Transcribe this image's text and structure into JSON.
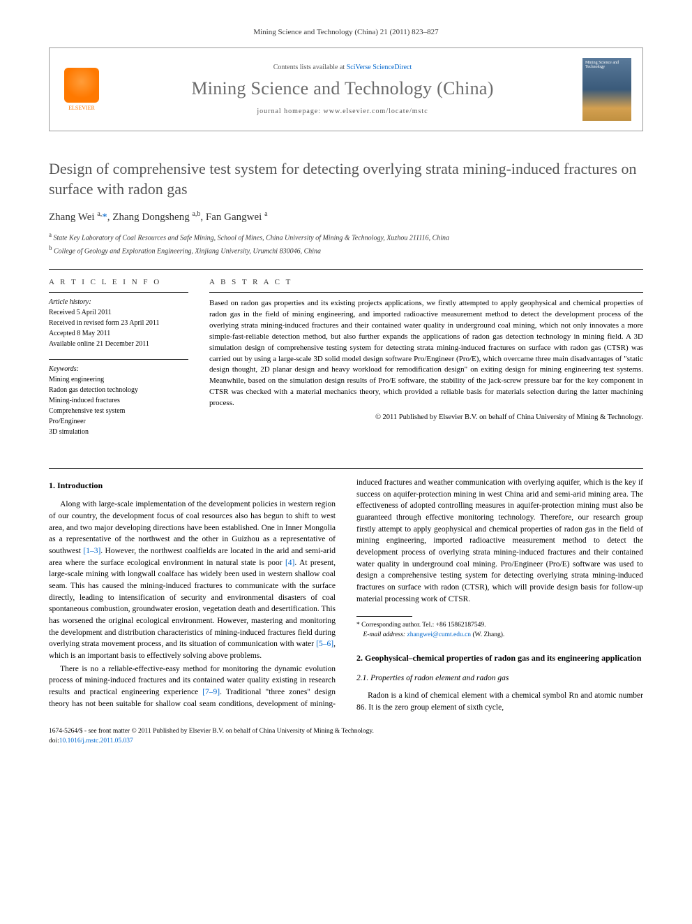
{
  "citation": "Mining Science and Technology (China) 21 (2011) 823–827",
  "header": {
    "contents_line_prefix": "Contents lists available at ",
    "contents_link": "SciVerse ScienceDirect",
    "journal_name": "Mining Science and Technology (China)",
    "homepage_prefix": "journal homepage: ",
    "homepage_url": "www.elsevier.com/locate/mstc",
    "elsevier_label": "ELSEVIER",
    "cover_text": "Mining Science and Technology"
  },
  "title": "Design of comprehensive test system for detecting overlying strata mining-induced fractures on surface with radon gas",
  "authors_html": "Zhang Wei <sup>a,</sup><a href='#'>*</a>, Zhang Dongsheng <sup>a,b</sup>, Fan Gangwei <sup>a</sup>",
  "affiliations": [
    {
      "sup": "a",
      "text": "State Key Laboratory of Coal Resources and Safe Mining, School of Mines, China University of Mining & Technology, Xuzhou 211116, China"
    },
    {
      "sup": "b",
      "text": "College of Geology and Exploration Engineering, Xinjiang University, Urumchi 830046, China"
    }
  ],
  "article_info": {
    "heading": "A R T I C L E   I N F O",
    "history_label": "Article history:",
    "history": [
      "Received 5 April 2011",
      "Received in revised form 23 April 2011",
      "Accepted 8 May 2011",
      "Available online 21 December 2011"
    ],
    "keywords_label": "Keywords:",
    "keywords": [
      "Mining engineering",
      "Radon gas detection technology",
      "Mining-induced fractures",
      "Comprehensive test system",
      "Pro/Engineer",
      "3D simulation"
    ]
  },
  "abstract": {
    "heading": "A B S T R A C T",
    "text": "Based on radon gas properties and its existing projects applications, we firstly attempted to apply geophysical and chemical properties of radon gas in the field of mining engineering, and imported radioactive measurement method to detect the development process of the overlying strata mining-induced fractures and their contained water quality in underground coal mining, which not only innovates a more simple-fast-reliable detection method, but also further expands the applications of radon gas detection technology in mining field. A 3D simulation design of comprehensive testing system for detecting strata mining-induced fractures on surface with radon gas (CTSR) was carried out by using a large-scale 3D solid model design software Pro/Engineer (Pro/E), which overcame three main disadvantages of \"static design thought, 2D planar design and heavy workload for remodification design\" on exiting design for mining engineering test systems. Meanwhile, based on the simulation design results of Pro/E software, the stability of the jack-screw pressure bar for the key component in CTSR was checked with a material mechanics theory, which provided a reliable basis for materials selection during the latter machining process.",
    "copyright": "© 2011 Published by Elsevier B.V. on behalf of China University of Mining & Technology."
  },
  "sections": {
    "intro_heading": "1. Introduction",
    "intro_p1": "Along with large-scale implementation of the development policies in western region of our country, the development focus of coal resources also has begun to shift to west area, and two major developing directions have been established. One in Inner Mongolia as a representative of the northwest and the other in Guizhou as a representative of southwest ",
    "intro_ref1": "[1–3]",
    "intro_p1b": ". However, the northwest coalfields are located in the arid and semi-arid area where the surface ecological environment in natural state is poor ",
    "intro_ref2": "[4]",
    "intro_p1c": ". At present, large-scale mining with longwall coalface has widely been used in western shallow coal seam. This has caused the mining-induced fractures to communicate with the surface directly, leading to intensification of security and environmental disasters of coal spontaneous combustion, groundwater erosion, vegetation death and desertification. This has worsened the original ecological environment. However, mastering and monitoring the development and distribution characteristics of mining-induced fractures field during overlying strata movement process, and its situation of communication with water ",
    "intro_ref3": "[5–6]",
    "intro_p1d": ", which is an important basis to effectively solving above problems.",
    "intro_p2": "There is no a reliable-effective-easy method for monitoring the dynamic evolution process of mining-induced fractures and its contained water quality existing in research results and practical engineering experience ",
    "intro_ref4": "[7–9]",
    "intro_p2b": ". Traditional \"three zones\" design theory has not been suitable for shallow coal seam conditions, development of mining-induced fractures and weather communication with overlying aquifer, which is the key if success on aquifer-protection mining in west China arid and semi-arid mining area. The effectiveness of adopted controlling measures in aquifer-protection mining must also be guaranteed through effective monitoring technology. Therefore, our research group firstly attempt to apply geophysical and chemical properties of radon gas in the field of mining engineering, imported radioactive measurement method to detect the development process of overlying strata mining-induced fractures and their contained water quality in underground coal mining. Pro/Engineer (Pro/E) software was used to design a comprehensive testing system for detecting overlying strata mining-induced fractures on surface with radon (CTSR), which will provide design basis for follow-up material processing work of CTSR.",
    "sec2_heading": "2. Geophysical–chemical properties of radon gas and its engineering application",
    "sec21_heading": "2.1. Properties of radon element and radon gas",
    "sec21_p1": "Radon is a kind of chemical element with a chemical symbol Rn and atomic number 86. It is the zero group element of sixth cycle,"
  },
  "footnotes": {
    "corr_label": "* Corresponding author. Tel.: +86 15862187549.",
    "email_label": "E-mail address: ",
    "email": "zhangwei@cumt.edu.cn",
    "email_suffix": " (W. Zhang)."
  },
  "footer": {
    "line1": "1674-5264/$ - see front matter © 2011 Published by Elsevier B.V. on behalf of China University of Mining & Technology.",
    "doi_label": "doi:",
    "doi": "10.1016/j.mstc.2011.05.037"
  },
  "colors": {
    "link": "#0066cc",
    "title_gray": "#555555",
    "elsevier_orange": "#ff7900"
  }
}
